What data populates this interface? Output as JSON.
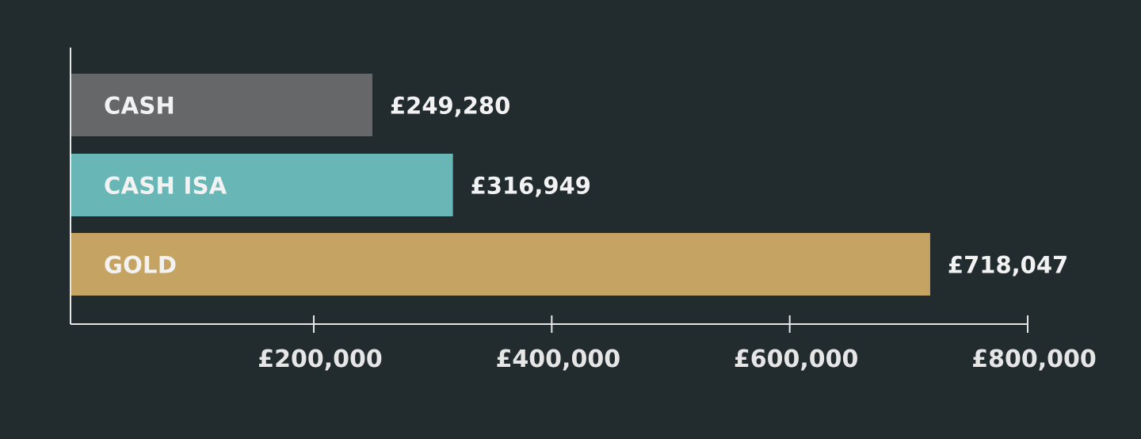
{
  "chart_data": {
    "type": "bar",
    "orientation": "horizontal",
    "categories": [
      "CASH",
      "CASH ISA",
      "GOLD"
    ],
    "values": [
      249280,
      316949,
      718047
    ],
    "value_labels": [
      "£249,280",
      "£316,949",
      "£718,047"
    ],
    "bar_colors": [
      "#666769",
      "#69b6b6",
      "#c5a363"
    ],
    "xlim": [
      0,
      800000
    ],
    "x_ticks": [
      200000,
      400000,
      600000,
      800000
    ],
    "x_tick_labels": [
      "£200,000",
      "£400,000",
      "£600,000",
      "£800,000"
    ],
    "grid": false,
    "legend": "none",
    "colors": {
      "background": "#222b2d",
      "axis": "#e6e6e6",
      "bar_text": "#f2f2f2",
      "value_text": "#f2f2f2"
    }
  }
}
